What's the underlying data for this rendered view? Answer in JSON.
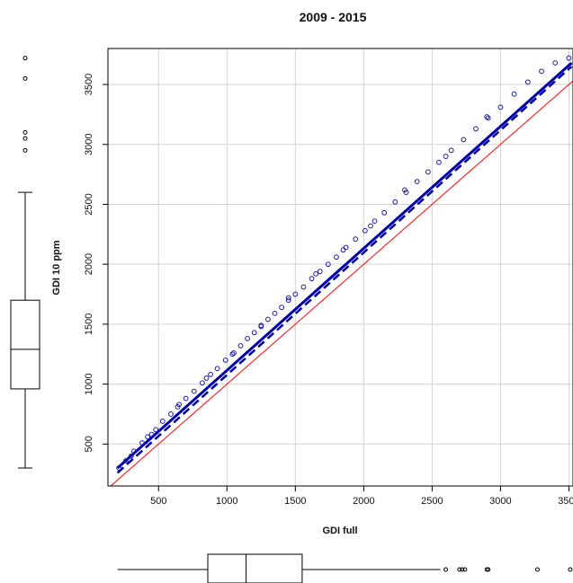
{
  "chart_data": {
    "type": "scatter",
    "title": "2009 - 2015",
    "xlabel": "GDI full",
    "ylabel": "GDI 10 ppm",
    "xlim": [
      130,
      3530
    ],
    "ylim": [
      150,
      3800
    ],
    "x_ticks": [
      500,
      1000,
      1500,
      2000,
      2500,
      3000,
      3500
    ],
    "y_ticks": [
      500,
      1000,
      1500,
      2000,
      2500,
      3000,
      3500
    ],
    "grid": true,
    "points_color": "#1a1aaa",
    "fit_color": "#0000aa",
    "identity_color": "#ff2a2a",
    "series": [
      {
        "kind": "scatter",
        "marker": "open-circle",
        "x": [
          210,
          260,
          320,
          380,
          420,
          480,
          530,
          590,
          640,
          700,
          760,
          820,
          880,
          930,
          990,
          1040,
          1100,
          1150,
          1200,
          1250,
          1300,
          1350,
          1400,
          1450,
          1500,
          1560,
          1620,
          1680,
          1740,
          1800,
          1870,
          1940,
          2010,
          2080,
          2150,
          2230,
          2310,
          2390,
          2470,
          2550,
          2640,
          2730,
          2820,
          2910,
          3000,
          3100,
          3200,
          3300,
          3400,
          3500,
          300,
          450,
          650,
          850,
          1050,
          1250,
          1450,
          1650,
          1850,
          2050,
          2300,
          2600,
          2900
        ],
        "y": [
          300,
          360,
          440,
          510,
          560,
          620,
          690,
          750,
          810,
          880,
          940,
          1010,
          1080,
          1130,
          1200,
          1250,
          1320,
          1380,
          1430,
          1490,
          1540,
          1590,
          1640,
          1700,
          1750,
          1810,
          1880,
          1940,
          2000,
          2060,
          2140,
          2210,
          2280,
          2360,
          2430,
          2520,
          2600,
          2690,
          2770,
          2850,
          2950,
          3040,
          3130,
          3220,
          3310,
          3420,
          3520,
          3610,
          3680,
          3720,
          400,
          580,
          830,
          1050,
          1260,
          1480,
          1720,
          1920,
          2120,
          2320,
          2620,
          2900,
          3230
        ]
      },
      {
        "kind": "line",
        "style": "solid",
        "x": [
          200,
          3520
        ],
        "y": [
          300,
          3680
        ]
      },
      {
        "kind": "line",
        "style": "dashed",
        "x": [
          200,
          3520
        ],
        "y": [
          260,
          3650
        ]
      },
      {
        "kind": "line",
        "style": "solid",
        "x": [
          150,
          3530
        ],
        "y": [
          150,
          3530
        ]
      }
    ],
    "marginal_y_boxplot": {
      "whisker_low": 300,
      "q1": 960,
      "median": 1290,
      "q3": 1700,
      "whisker_high": 2600,
      "outliers": [
        2950,
        3050,
        3100,
        3550,
        3720
      ]
    },
    "marginal_x_boxplot": {
      "whisker_low": 200,
      "q1": 860,
      "median": 1140,
      "q3": 1550,
      "whisker_high": 2560,
      "outliers": [
        2600,
        2700,
        2720,
        2740,
        2900,
        2910,
        3270,
        3510
      ]
    }
  }
}
